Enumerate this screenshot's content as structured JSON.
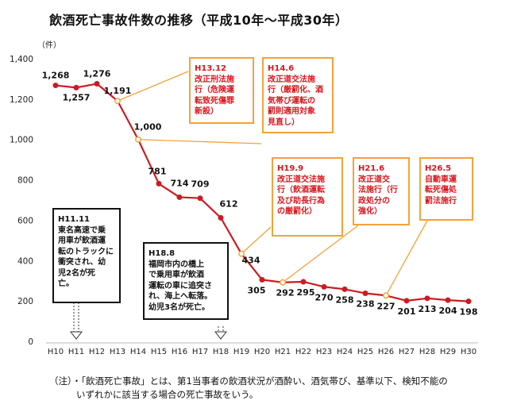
{
  "title": "飲酒死亡事故件数の推移（平成10年～平成30年）",
  "chart_data": {
    "type": "line",
    "y_unit": "（件）",
    "ylim": [
      0,
      1400
    ],
    "yticks": [
      "0",
      "200",
      "400",
      "600",
      "800",
      "1,000",
      "1,200",
      "1,400"
    ],
    "categories": [
      "H10",
      "H11",
      "H12",
      "H13",
      "H14",
      "H15",
      "H16",
      "H17",
      "H18",
      "H19",
      "H20",
      "H21",
      "H22",
      "H23",
      "H24",
      "H25",
      "H26",
      "H27",
      "H28",
      "H29",
      "H30"
    ],
    "values": [
      1268,
      1257,
      1276,
      1191,
      1000,
      781,
      714,
      709,
      612,
      434,
      305,
      292,
      295,
      270,
      258,
      238,
      227,
      201,
      213,
      204,
      198
    ],
    "labels": [
      "1,268",
      "1,257",
      "1,276",
      "1,191",
      "1,000",
      "781",
      "714",
      "709",
      "612",
      "434",
      "305",
      "292",
      "295",
      "270",
      "258",
      "238",
      "227",
      "201",
      "213",
      "204",
      "198"
    ],
    "line_color": "#cc1b22",
    "callout_color": "#f4a23a",
    "grid": false
  },
  "annotations": [
    {
      "id": "h13",
      "lines": [
        "H13.12",
        "改正刑法施",
        "行（危険運",
        "転致死傷罪",
        "新設）"
      ],
      "color": "orange",
      "points_to": "H13"
    },
    {
      "id": "h14",
      "lines": [
        "H14.6",
        "改正道交法施",
        "行（厳罰化、酒",
        "気帯び運転の",
        "罰則適用対象",
        "見直し）"
      ],
      "color": "orange",
      "points_to": "H14"
    },
    {
      "id": "h19",
      "lines": [
        "H19.9",
        "改正道交法施",
        "行（飲酒運転",
        "及び助長行為",
        "の厳罰化）"
      ],
      "color": "orange",
      "points_to": "H19"
    },
    {
      "id": "h21",
      "lines": [
        "H21.6",
        "改正道交",
        "法施行（行",
        "政処分の",
        "強化）"
      ],
      "color": "orange",
      "points_to": "H21"
    },
    {
      "id": "h26",
      "lines": [
        "H26.5",
        "自動車運",
        "転死傷処",
        "罰法施行"
      ],
      "color": "orange",
      "points_to": "H26"
    },
    {
      "id": "h11",
      "lines": [
        "H11.11",
        "東名高速で乗",
        "用車が飲酒運",
        "転のトラックに",
        "衝突され、幼",
        "児2名が死",
        "亡。"
      ],
      "color": "black",
      "points_to": "H11"
    },
    {
      "id": "h18",
      "lines": [
        "H18.8",
        "福岡市内の橋上",
        "で乗用車が飲酒",
        "運転の車に追突さ",
        "れ、海上へ転落。",
        "幼児3名が死亡。"
      ],
      "color": "black",
      "points_to": "H18"
    }
  ],
  "footnote": {
    "line1": "（注）・「飲酒死亡事故」とは、第1当事者の飲酒状況が酒酔い、酒気帯び、基準以下、検知不能の",
    "line2": "いずれかに該当する場合の死亡事故をいう。"
  }
}
